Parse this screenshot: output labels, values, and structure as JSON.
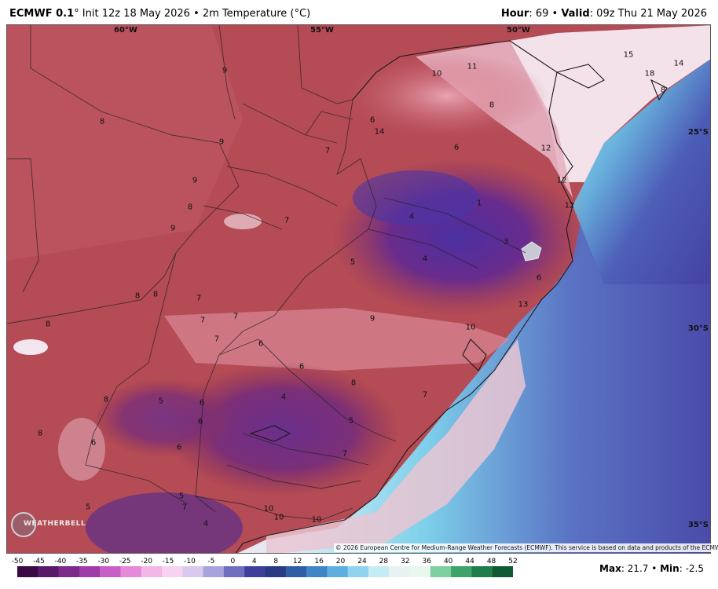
{
  "header": {
    "model": "ECMWF 0.1",
    "init": "° Init 12z 18 May 2026 • 2m Temperature (°C)",
    "hour_label": "Hour",
    "hour_value": ": 69 • ",
    "valid_label": "Valid",
    "valid_value": ": 09z Thu 21 May 2026"
  },
  "axes": {
    "lon_labels": [
      "60°W",
      "55°W",
      "50°W"
    ],
    "lat_labels": [
      "25°S",
      "30°S",
      "35°S"
    ]
  },
  "temperature_labels": [
    "9",
    "10",
    "11",
    "8",
    "8",
    "6",
    "14",
    "15",
    "14",
    "18",
    "8",
    "7",
    "6",
    "12",
    "9",
    "9",
    "8",
    "12",
    "4",
    "1",
    "12",
    "9",
    "7",
    "3",
    "5",
    "4",
    "7",
    "6",
    "13",
    "8",
    "8",
    "7",
    "7",
    "9",
    "10",
    "7",
    "8",
    "6",
    "6",
    "8",
    "5",
    "4",
    "5",
    "8",
    "6",
    "8",
    "6",
    "6",
    "7",
    "7",
    "5",
    "6",
    "10",
    "10",
    "10",
    "4",
    "7",
    "5"
  ],
  "copyright": "© 2026 European Centre for Medium-Range Weather Forecasts (ECMWF). This service is based on data and products of the ECMWF.",
  "logo_text": "WEATHERBELL",
  "colorbar": {
    "ticks": [
      "-50",
      "-45",
      "-40",
      "-35",
      "-30",
      "-25",
      "-20",
      "-15",
      "-10",
      "-5",
      "0",
      "4",
      "8",
      "12",
      "16",
      "20",
      "24",
      "28",
      "32",
      "36",
      "40",
      "44",
      "48",
      "52"
    ],
    "colors": [
      "#3b0a45",
      "#5a1a6a",
      "#7b2b8a",
      "#a03ca8",
      "#c85fc6",
      "#e48ad8",
      "#f3b6e9",
      "#f7d3f1",
      "#d9c9ee",
      "#a7a3dc",
      "#6e6fc0",
      "#3e3f9d",
      "#2a3b84",
      "#2f5ea6",
      "#3f86c7",
      "#5eaee0",
      "#8fd3ee",
      "#c5ecf4",
      "#e8f3f1",
      "#e8f8ef",
      "#7ecfa0",
      "#3da36b",
      "#1f7d4b",
      "#0f5a33"
    ]
  },
  "max_label": "Max",
  "max_value": ": 21.7 • ",
  "min_label": "Min",
  "min_value": ": -2.5",
  "colors": {
    "land_red": "#b0454f",
    "deep_purple": "#5a2a8c",
    "ocean_blue": "#4a4aa8",
    "ocean_cyan": "#7fd2ec",
    "snow_gray": "#c9c9d6"
  }
}
